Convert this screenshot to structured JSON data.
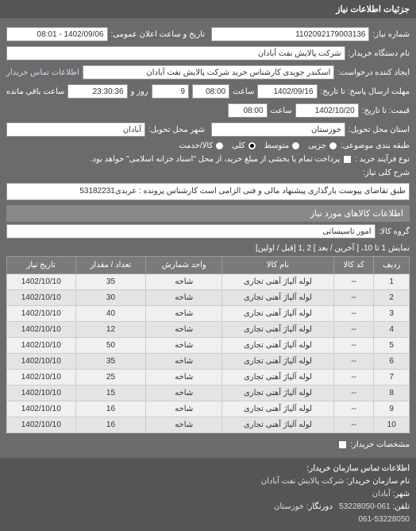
{
  "header": {
    "title": "جزئیات اطلاعات نیاز"
  },
  "form": {
    "request_no_label": "شماره نیاز:",
    "request_no": "1102092179003136",
    "public_datetime_label": "تاریخ و ساعت اعلان عمومی:",
    "public_datetime": "1402/09/06 - 08:01",
    "buyer_name_label": "نام دستگاه خریدار:",
    "buyer_name": "شرکت پالایش نفت آبادان",
    "requester_label": "ایجاد کننده درخواست:",
    "requester": "اسکندر جویدی کارشناس خرید شرکت پالایش نفت آبادان",
    "buyer_contact_link": "اطلاعات تماس خریدار",
    "deadline_send_label": "مهلت ارسال پاسخ: تا تاریخ:",
    "deadline_date": "1402/09/16",
    "time_label": "ساعت",
    "deadline_time": "08:00",
    "days_label": "روز و",
    "days_value": "9",
    "remain_label": "ساعت باقی مانده",
    "remain_time": "23:30:36",
    "validity_label": "قیمت: تا تاریخ:",
    "validity_date": "1402/10/20",
    "validity_time": "08:00",
    "province_label": "استان محل تحویل:",
    "province": "خوزستان",
    "city_label": "شهر محل تحویل:",
    "city": "آبادان",
    "packing_label": "طبقه بندی موضوعی:",
    "packing_options": [
      "جزیی",
      "متوسط",
      "کلی",
      "کالا/خدمت"
    ],
    "packing_selected": 2,
    "payment_label": "نوع فرآیند خرید :",
    "payment_note": "پرداخت تمام یا بخشی از مبلغ خرید، از محل \"اسناد خزانه اسلامی\" خواهد بود.",
    "desc_label": "شرح کلی نیاز:",
    "desc": "طبق تقاضای پیوست بارگذاری پیشنهاد مالی و فنی الزامی است کارشناس پرونده : عربدی53182231"
  },
  "goods": {
    "section_title": "اطلاعات کالاهای مورد نیاز",
    "group_label": "گروه کالا:",
    "group_value": "امور تاسیساتی",
    "pager_text": "نمایش 1 تا 10، [ آخرین / بعد ] 2 ,1 [قبل / اولین]",
    "columns": [
      "ردیف",
      "کد کالا",
      "نام کالا",
      "واحد شمارش",
      "تعداد / مقدار",
      "تاریخ نیاز"
    ],
    "rows": [
      [
        "1",
        "--",
        "لوله آلیاژ آهنی تجاری",
        "شاخه",
        "35",
        "1402/10/10"
      ],
      [
        "2",
        "--",
        "لوله آلیاژ آهنی تجاری",
        "شاخه",
        "30",
        "1402/10/10"
      ],
      [
        "3",
        "--",
        "لوله آلیاژ آهنی تجاری",
        "شاخه",
        "40",
        "1402/10/10"
      ],
      [
        "4",
        "--",
        "لوله آلیاژ آهنی تجاری",
        "شاخه",
        "12",
        "1402/10/10"
      ],
      [
        "5",
        "--",
        "لوله آلیاژ آهنی تجاری",
        "شاخه",
        "50",
        "1402/10/10"
      ],
      [
        "6",
        "--",
        "لوله آلیاژ آهنی تجاری",
        "شاخه",
        "35",
        "1402/10/10"
      ],
      [
        "7",
        "--",
        "لوله آلیاژ آهنی تجاری",
        "شاخه",
        "25",
        "1402/10/10"
      ],
      [
        "8",
        "--",
        "لوله آلیاژ آهنی تجاری",
        "شاخه",
        "15",
        "1402/10/10"
      ],
      [
        "9",
        "--",
        "لوله آلیاژ آهنی تجاری",
        "شاخه",
        "16",
        "1402/10/10"
      ],
      [
        "10",
        "--",
        "لوله آلیاژ آهنی تجاری",
        "شاخه",
        "16",
        "1402/10/10"
      ]
    ],
    "buyer_contact_label": "مشخصات خریدار:"
  },
  "footer": {
    "title": "اطلاعات تماس سازمان خریدار:",
    "org_label": "نام سازمان خریدار:",
    "org": "شرکت پالایش نفت آبادان",
    "city_label": "شهر:",
    "city": "آبادان",
    "tel_label": "تلفن:",
    "tel": "061-53228050",
    "fax_label": "دورنگار:",
    "fax": "خوزستان",
    "fax2": "061-53228050"
  }
}
